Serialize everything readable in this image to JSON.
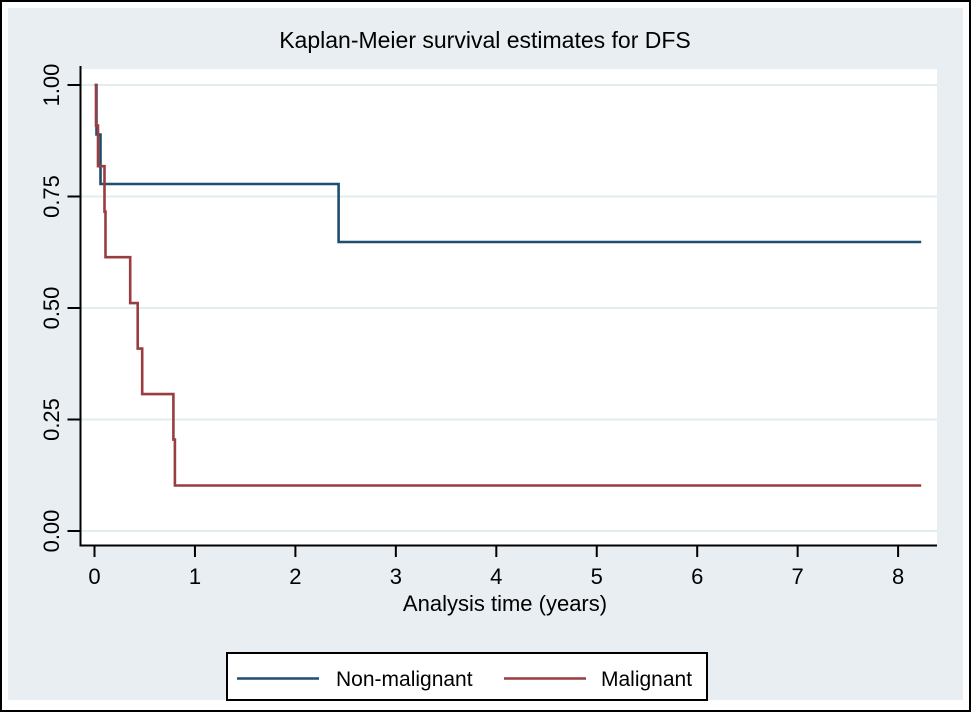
{
  "figure": {
    "background_color": "#e8eef1",
    "plot_background_color": "#ffffff",
    "grid_color": "#e2edf0",
    "axis_color": "#000000",
    "title_color": "#1f3a60"
  },
  "chart_data": {
    "type": "line",
    "subtype": "kaplan-meier-step",
    "title": "Kaplan-Meier survival estimates for DFS",
    "xlabel": "Analysis time (years)",
    "ylabel": "",
    "xlim": [
      0,
      8.4
    ],
    "ylim": [
      0,
      1
    ],
    "xticks": [
      0,
      1,
      2,
      3,
      4,
      5,
      6,
      7,
      8
    ],
    "yticks": [
      {
        "v": 0.0,
        "label": "0.00"
      },
      {
        "v": 0.25,
        "label": "0.25"
      },
      {
        "v": 0.5,
        "label": "0.50"
      },
      {
        "v": 0.75,
        "label": "0.75"
      },
      {
        "v": 1.0,
        "label": "1.00"
      }
    ],
    "grid": "horizontal",
    "legend_position": "bottom",
    "series": [
      {
        "name": "Non-malignant",
        "color": "#1f4e6e",
        "steps": [
          [
            0,
            1.0
          ],
          [
            0.02,
            0.889
          ],
          [
            0.06,
            0.778
          ],
          [
            2.43,
            0.648
          ],
          [
            8.23,
            0.648
          ]
        ]
      },
      {
        "name": "Malignant",
        "color": "#993d41",
        "steps": [
          [
            0,
            1.0
          ],
          [
            0.015,
            0.909
          ],
          [
            0.035,
            0.818
          ],
          [
            0.1,
            0.716
          ],
          [
            0.11,
            0.614
          ],
          [
            0.355,
            0.511
          ],
          [
            0.43,
            0.409
          ],
          [
            0.475,
            0.307
          ],
          [
            0.785,
            0.205
          ],
          [
            0.8,
            0.102
          ],
          [
            8.23,
            0.102
          ]
        ]
      }
    ]
  },
  "legend": {
    "items": [
      {
        "label": "Non-malignant",
        "color": "#1f4e6e"
      },
      {
        "label": "Malignant",
        "color": "#993d41"
      }
    ]
  }
}
